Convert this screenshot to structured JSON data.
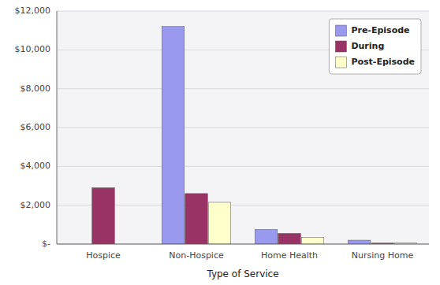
{
  "chart_data": {
    "type": "bar",
    "xlabel": "Type of Service",
    "categories": [
      "Hospice",
      "Non-Hospice",
      "Home Health",
      "Nursing Home"
    ],
    "series": [
      {
        "name": "Pre-Episode",
        "color": "#9999EE",
        "values": [
          0,
          11200,
          750,
          200
        ]
      },
      {
        "name": "During",
        "color": "#993366",
        "values": [
          2900,
          2600,
          550,
          50
        ]
      },
      {
        "name": "Post-Episode",
        "color": "#FFFFCC",
        "values": [
          0,
          2150,
          350,
          50
        ]
      }
    ],
    "ylim": [
      0,
      12000
    ],
    "yticks": [
      {
        "value": 0,
        "label": "$-"
      },
      {
        "value": 2000,
        "label": "$2,000"
      },
      {
        "value": 4000,
        "label": "$4,000"
      },
      {
        "value": 6000,
        "label": "$6,000"
      },
      {
        "value": 8000,
        "label": "$8,000"
      },
      {
        "value": 10000,
        "label": "$10,000"
      },
      {
        "value": 12000,
        "label": "$12,000"
      }
    ],
    "grid": true,
    "legend": "upper right"
  }
}
